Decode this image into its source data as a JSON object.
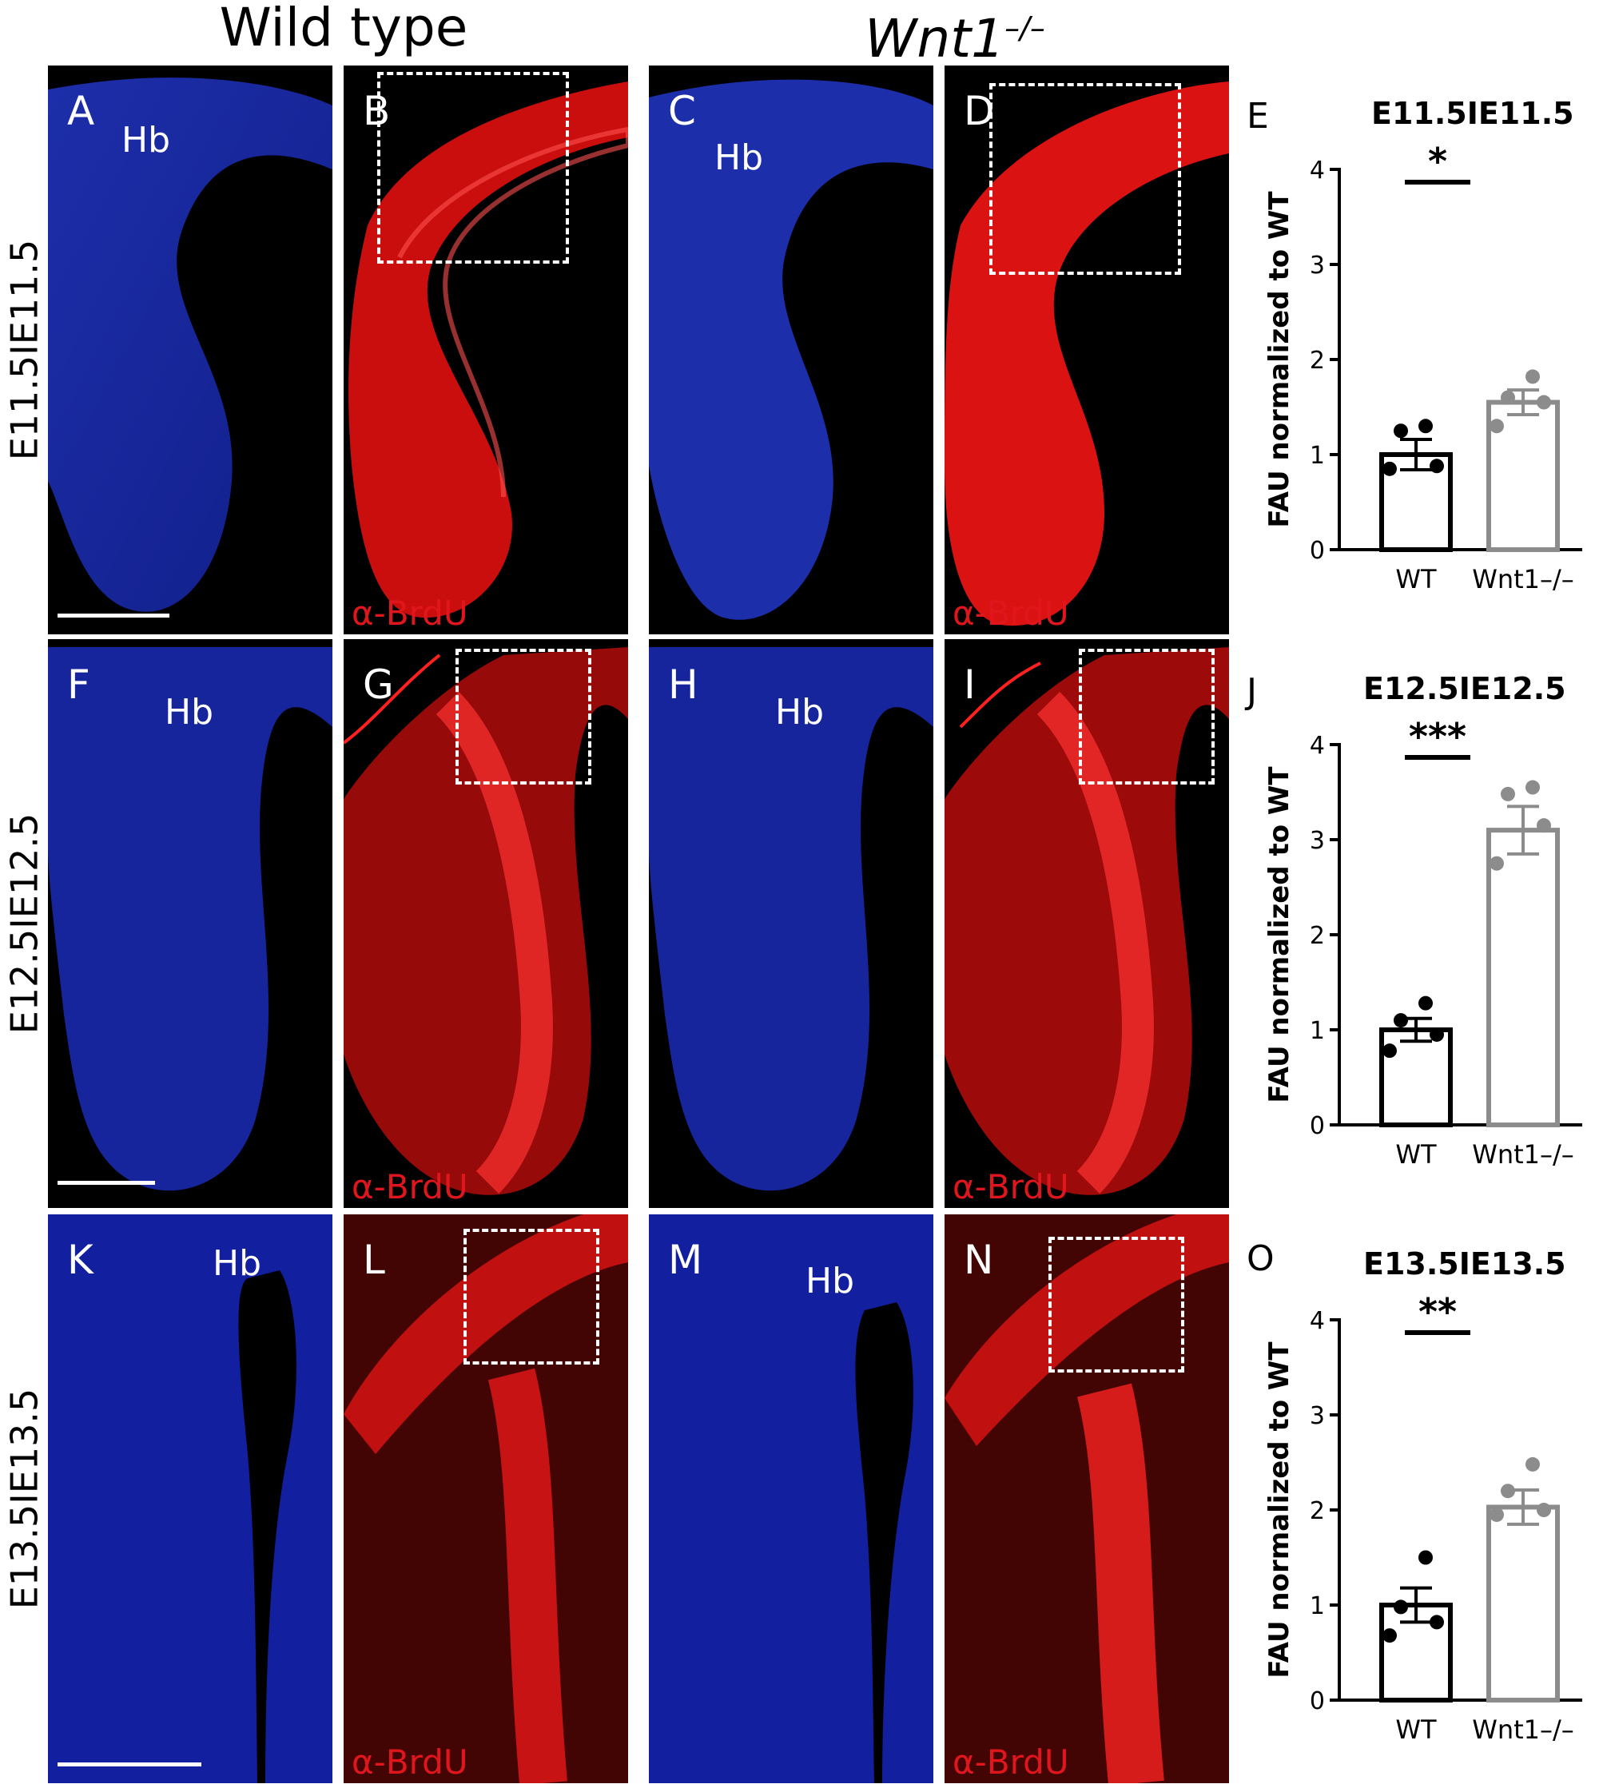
{
  "columns": {
    "wild_type": "Wild type",
    "mutant_base": "Wnt1",
    "mutant_sup": "–/–"
  },
  "rows": [
    {
      "label": "E11.5IE11.5",
      "panels": [
        {
          "letter": "A",
          "hb": "Hb",
          "stain": ""
        },
        {
          "letter": "B",
          "hb": "",
          "stain": "α-BrdU"
        },
        {
          "letter": "C",
          "hb": "Hb",
          "stain": ""
        },
        {
          "letter": "D",
          "hb": "",
          "stain": "α-BrdU"
        }
      ]
    },
    {
      "label": "E12.5IE12.5",
      "panels": [
        {
          "letter": "F",
          "hb": "Hb",
          "stain": ""
        },
        {
          "letter": "G",
          "hb": "",
          "stain": "α-BrdU"
        },
        {
          "letter": "H",
          "hb": "Hb",
          "stain": ""
        },
        {
          "letter": "I",
          "hb": "",
          "stain": "α-BrdU"
        }
      ]
    },
    {
      "label": "E13.5IE13.5",
      "panels": [
        {
          "letter": "K",
          "hb": "Hb",
          "stain": ""
        },
        {
          "letter": "L",
          "hb": "",
          "stain": "α-BrdU"
        },
        {
          "letter": "M",
          "hb": "Hb",
          "stain": ""
        },
        {
          "letter": "N",
          "hb": "",
          "stain": "α-BrdU"
        }
      ]
    }
  ],
  "colors": {
    "dapi": "#1a2fd0",
    "brdu": "#ff1a1a",
    "wt_bar": "#000000",
    "ko_bar": "#8c8c8c"
  },
  "chart_data": [
    {
      "type": "bar",
      "panel_letter": "E",
      "title": "E11.5IE11.5",
      "ylabel": "FAU normalized to WT",
      "categories": [
        "WT",
        "Wnt1–/–"
      ],
      "values": [
        1.0,
        1.55
      ],
      "sem": [
        0.16,
        0.13
      ],
      "points": [
        [
          1.3,
          1.25,
          0.88,
          0.85
        ],
        [
          1.82,
          1.6,
          1.55,
          1.3
        ]
      ],
      "significance": "*",
      "ylim": [
        0,
        4
      ],
      "yticks": [
        "0",
        "1",
        "2",
        "3",
        "4"
      ]
    },
    {
      "type": "bar",
      "panel_letter": "J",
      "title": "E12.5IE12.5",
      "ylabel": "FAU normalized to WT",
      "categories": [
        "WT",
        "Wnt1–/–"
      ],
      "values": [
        1.0,
        3.1
      ],
      "sem": [
        0.12,
        0.25
      ],
      "points": [
        [
          1.28,
          1.1,
          0.95,
          0.78
        ],
        [
          3.55,
          3.48,
          3.15,
          2.75
        ]
      ],
      "significance": "***",
      "ylim": [
        0,
        4
      ],
      "yticks": [
        "0",
        "1",
        "2",
        "3",
        "4"
      ]
    },
    {
      "type": "bar",
      "panel_letter": "O",
      "title": "E13.5IE13.5",
      "ylabel": "FAU normalized to WT",
      "categories": [
        "WT",
        "Wnt1–/–"
      ],
      "values": [
        1.0,
        2.03
      ],
      "sem": [
        0.18,
        0.18
      ],
      "points": [
        [
          1.5,
          0.98,
          0.82,
          0.68
        ],
        [
          2.48,
          2.2,
          2.0,
          1.95
        ]
      ],
      "significance": "**",
      "ylim": [
        0,
        4
      ],
      "yticks": [
        "0",
        "1",
        "2",
        "3",
        "4"
      ]
    }
  ]
}
